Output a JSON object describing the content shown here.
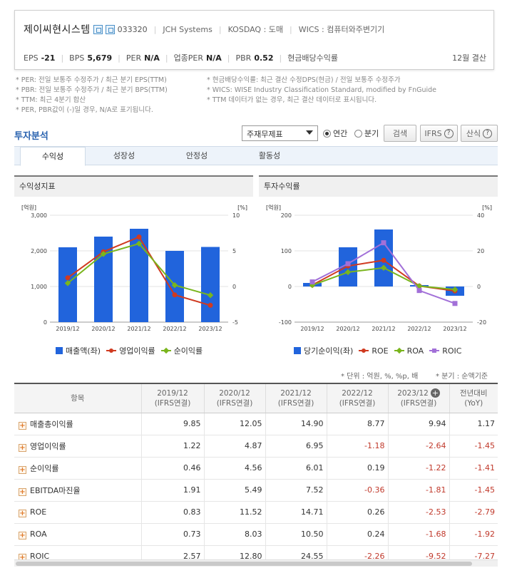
{
  "company": {
    "name": "제이씨현시스템",
    "code": "033320",
    "english_name": "JCH Systems",
    "market": "KOSDAQ : 도매",
    "wics": "WICS : 컴퓨터와주변기기",
    "fiscal": "12월 결산",
    "metrics": [
      {
        "label": "EPS",
        "value": "-21"
      },
      {
        "label": "BPS",
        "value": "5,679"
      },
      {
        "label": "PER",
        "value": "N/A"
      },
      {
        "label": "업종PER",
        "value": "N/A"
      },
      {
        "label": "PBR",
        "value": "0.52"
      },
      {
        "label": "현금배당수익률",
        "value": ""
      }
    ]
  },
  "notes": {
    "left": [
      "* PER: 전일 보통주 수정주가 / 최근 분기 EPS(TTM)",
      "* PBR: 전일 보통주 수정주가 / 최근 분기 BPS(TTM)",
      "* TTM: 최근 4분기 합산",
      "* PER, PBR값이 (-)일 경우, N/A로 표기됩니다."
    ],
    "right": [
      "* 현금배당수익률: 최근 결산 수정DPS(현금) / 전일 보통주 수정주가",
      "* WICS: WISE Industry Classification Standard, modified by FnGuide",
      "* TTM 데이터가 없는 경우, 최근 결산 데이터로 표시됩니다."
    ]
  },
  "toolbar": {
    "title": "투자분석",
    "select_value": "주재무제표",
    "radio_annual": "연간",
    "radio_quarter": "분기",
    "search_label": "검색",
    "ifrs_label": "IFRS",
    "formula_label": "산식"
  },
  "tabs": [
    "수익성",
    "성장성",
    "안정성",
    "활동성"
  ],
  "panels": {
    "left_title": "수익성지표",
    "right_title": "투자수익률"
  },
  "chart_data": [
    {
      "type": "bar",
      "title": "수익성지표",
      "categories": [
        "2019/12",
        "2020/12",
        "2021/12",
        "2022/12",
        "2023/12"
      ],
      "y_left_unit": "[억원]",
      "y_right_unit": "[%]",
      "y_left_ticks": [
        "3,000",
        "2,000",
        "1,000",
        "0"
      ],
      "y_right_ticks": [
        "10",
        "5",
        "0",
        "-5"
      ],
      "ylim_left": [
        0,
        3000
      ],
      "ylim_right": [
        -5,
        10
      ],
      "series": [
        {
          "name": "매출액(좌)",
          "kind": "bar",
          "axis": "left",
          "color": "#2164dc",
          "values": [
            2100,
            2400,
            2620,
            2000,
            2110
          ]
        },
        {
          "name": "영업이익률",
          "kind": "line",
          "axis": "right",
          "color": "#d03a20",
          "marker": "circle",
          "values": [
            1.22,
            4.87,
            6.95,
            -1.18,
            -2.64
          ]
        },
        {
          "name": "순이익률",
          "kind": "line",
          "axis": "right",
          "color": "#7ab51d",
          "marker": "diamond",
          "values": [
            0.46,
            4.56,
            6.01,
            0.19,
            -1.22
          ]
        }
      ]
    },
    {
      "type": "bar",
      "title": "투자수익률",
      "categories": [
        "2019/12",
        "2020/12",
        "2021/12",
        "2022/12",
        "2023/12"
      ],
      "y_left_unit": "[억원]",
      "y_right_unit": "[%]",
      "y_left_ticks": [
        "200",
        "100",
        "0",
        "-100"
      ],
      "y_right_ticks": [
        "40",
        "20",
        "0",
        "-20"
      ],
      "ylim_left": [
        -100,
        200
      ],
      "ylim_right": [
        -20,
        40
      ],
      "series": [
        {
          "name": "당기순이익(좌)",
          "kind": "bar",
          "axis": "left",
          "color": "#2164dc",
          "values": [
            10,
            110,
            160,
            4,
            -26
          ]
        },
        {
          "name": "ROE",
          "kind": "line",
          "axis": "right",
          "color": "#d03a20",
          "marker": "circle",
          "values": [
            0.83,
            11.52,
            14.71,
            0.26,
            -2.53
          ]
        },
        {
          "name": "ROA",
          "kind": "line",
          "axis": "right",
          "color": "#7ab51d",
          "marker": "diamond",
          "values": [
            0.73,
            8.03,
            10.5,
            0.24,
            -1.68
          ]
        },
        {
          "name": "ROIC",
          "kind": "line",
          "axis": "right",
          "color": "#a270d8",
          "marker": "square",
          "values": [
            2.57,
            12.8,
            24.55,
            -2.26,
            -9.52
          ]
        }
      ]
    }
  ],
  "units_note": {
    "unit": "* 단위 : 억원, %, %p, 배",
    "quarter": "* 분기 : 순액기준"
  },
  "table": {
    "headers": [
      {
        "line1": "항목",
        "line2": ""
      },
      {
        "line1": "2019/12",
        "line2": "(IFRS연결)"
      },
      {
        "line1": "2020/12",
        "line2": "(IFRS연결)"
      },
      {
        "line1": "2021/12",
        "line2": "(IFRS연결)"
      },
      {
        "line1": "2022/12",
        "line2": "(IFRS연결)"
      },
      {
        "line1": "2023/12",
        "line2": "(IFRS연결)"
      },
      {
        "line1": "전년대비",
        "line2": "(YoY)"
      }
    ],
    "rows": [
      {
        "label": "매출총이익률",
        "values": [
          "9.85",
          "12.05",
          "14.90",
          "8.77",
          "9.94",
          "1.17"
        ]
      },
      {
        "label": "영업이익률",
        "values": [
          "1.22",
          "4.87",
          "6.95",
          "-1.18",
          "-2.64",
          "-1.45"
        ]
      },
      {
        "label": "순이익률",
        "values": [
          "0.46",
          "4.56",
          "6.01",
          "0.19",
          "-1.22",
          "-1.41"
        ]
      },
      {
        "label": "EBITDA마진율",
        "values": [
          "1.91",
          "5.49",
          "7.52",
          "-0.36",
          "-1.81",
          "-1.45"
        ]
      },
      {
        "label": "ROE",
        "values": [
          "0.83",
          "11.52",
          "14.71",
          "0.26",
          "-2.53",
          "-2.79"
        ]
      },
      {
        "label": "ROA",
        "values": [
          "0.73",
          "8.03",
          "10.50",
          "0.24",
          "-1.68",
          "-1.92"
        ]
      },
      {
        "label": "ROIC",
        "values": [
          "2.57",
          "12.80",
          "24.55",
          "-2.26",
          "-9.52",
          "-7.27"
        ]
      }
    ]
  }
}
